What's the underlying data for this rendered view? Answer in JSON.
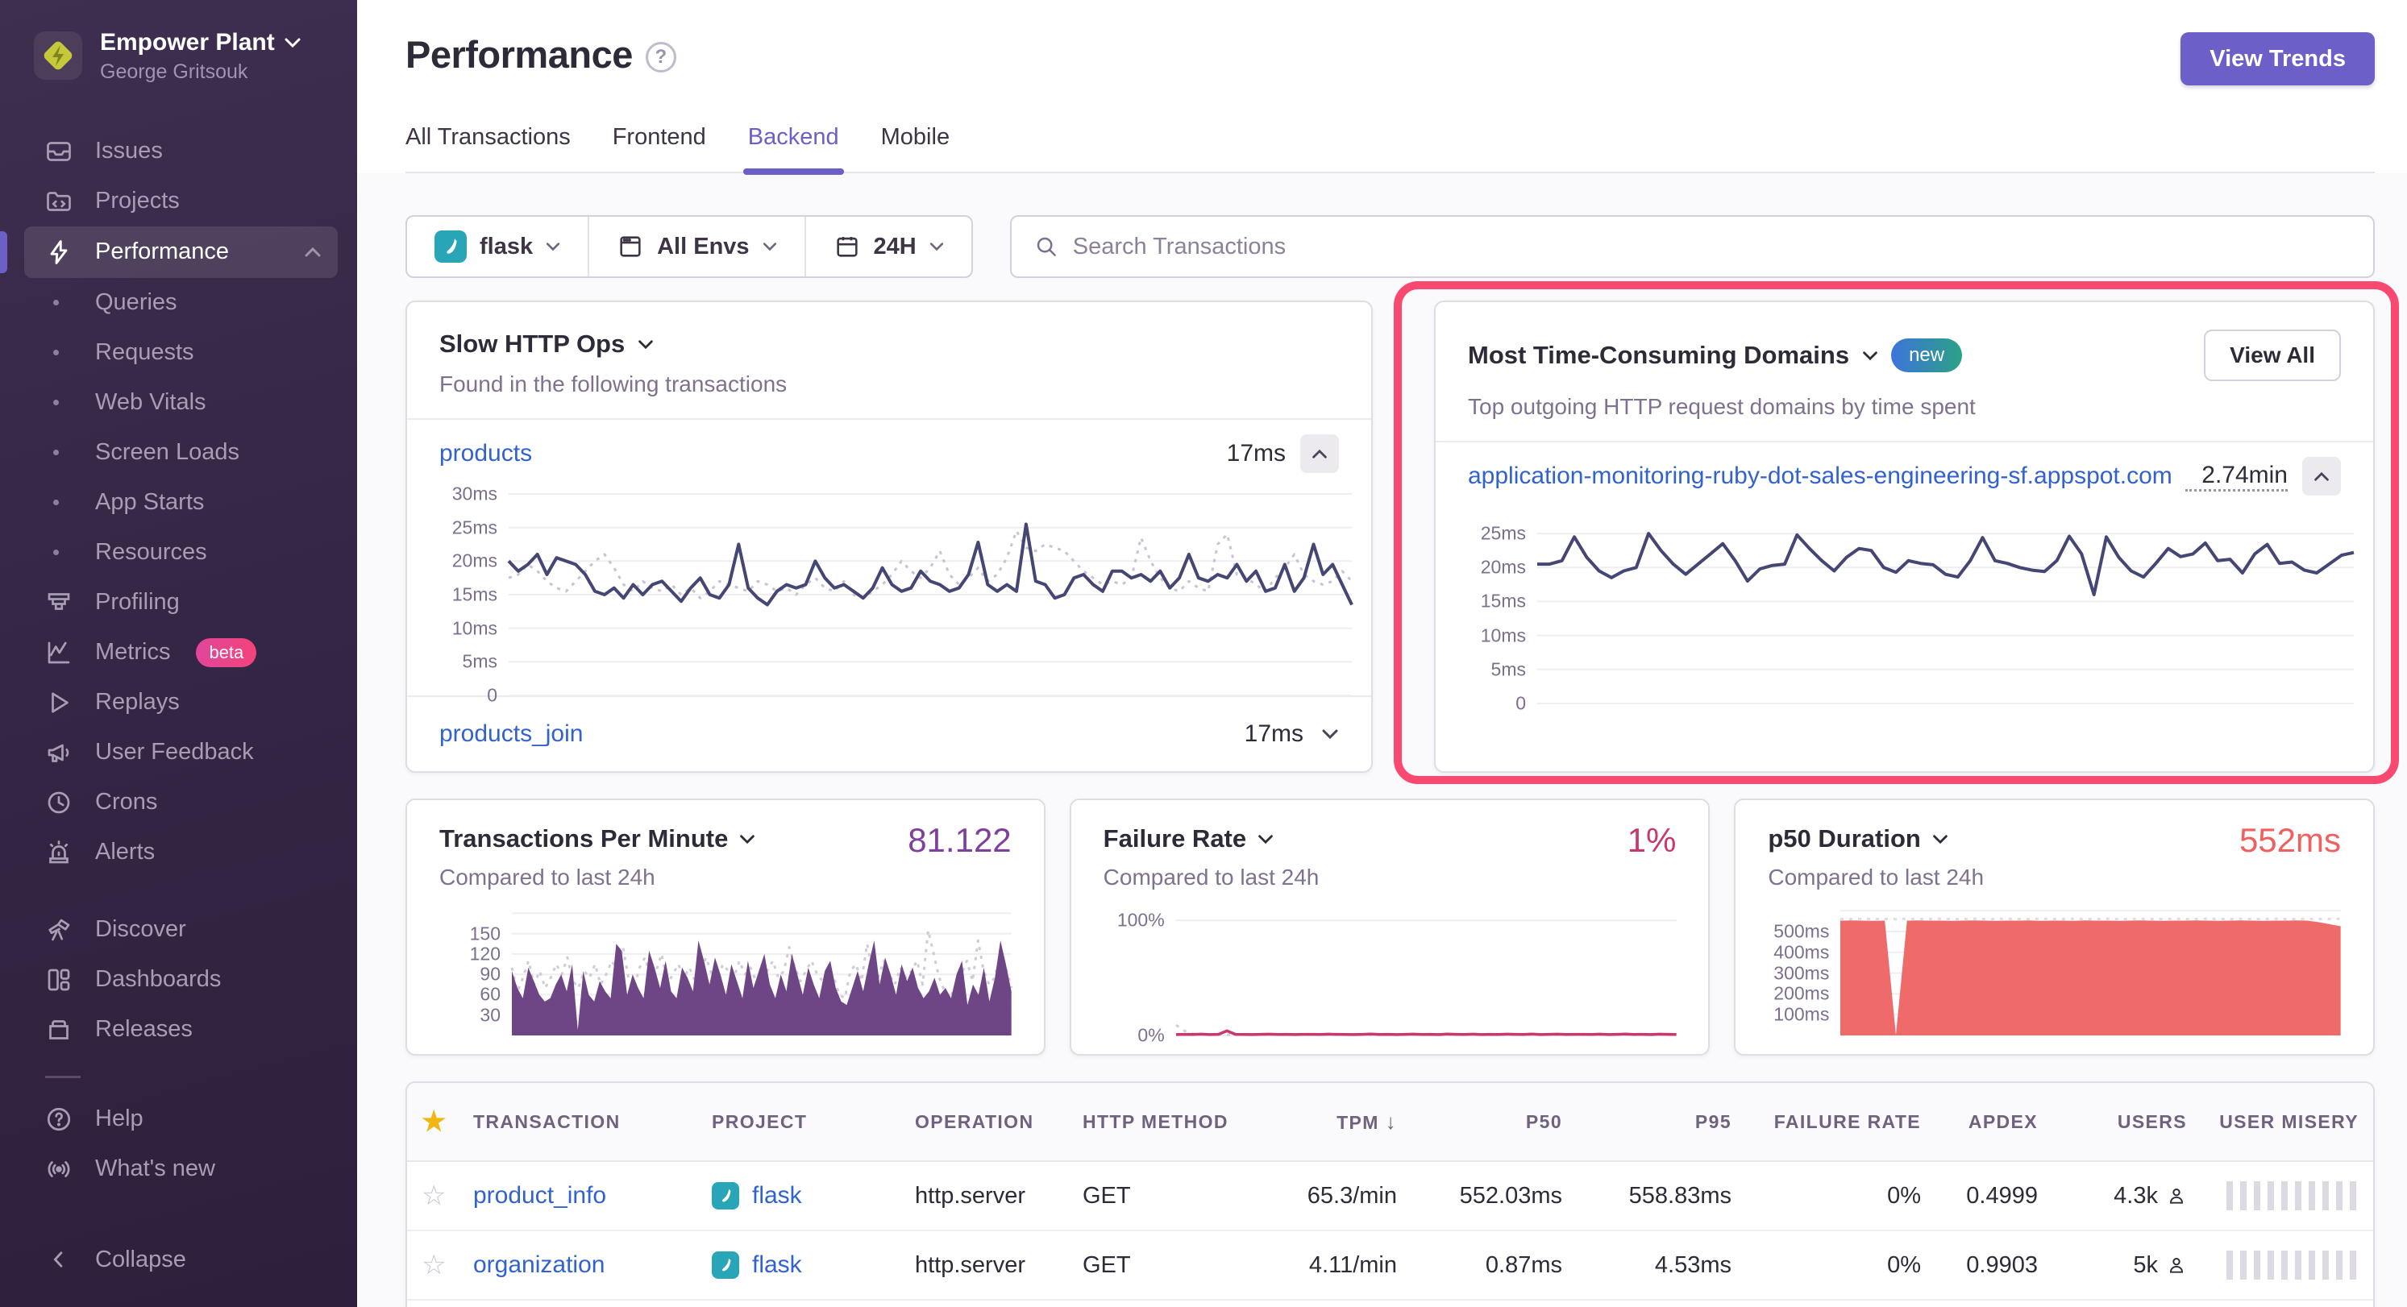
{
  "org": {
    "name": "Empower Plant",
    "user": "George Gritsouk"
  },
  "sidebar": {
    "items": [
      {
        "label": "Issues"
      },
      {
        "label": "Projects"
      },
      {
        "label": "Performance"
      },
      {
        "label": "Queries"
      },
      {
        "label": "Requests"
      },
      {
        "label": "Web Vitals"
      },
      {
        "label": "Screen Loads"
      },
      {
        "label": "App Starts"
      },
      {
        "label": "Resources"
      },
      {
        "label": "Profiling"
      },
      {
        "label": "Metrics",
        "badge": "beta"
      },
      {
        "label": "Replays"
      },
      {
        "label": "User Feedback"
      },
      {
        "label": "Crons"
      },
      {
        "label": "Alerts"
      },
      {
        "label": "Discover"
      },
      {
        "label": "Dashboards"
      },
      {
        "label": "Releases"
      },
      {
        "label": "Help"
      },
      {
        "label": "What's new"
      },
      {
        "label": "Collapse"
      }
    ]
  },
  "header": {
    "title": "Performance",
    "view_trends": "View Trends",
    "tabs": [
      {
        "label": "All Transactions"
      },
      {
        "label": "Frontend"
      },
      {
        "label": "Backend"
      },
      {
        "label": "Mobile"
      }
    ],
    "active_tab": "Backend"
  },
  "filters": {
    "project": "flask",
    "environment": "All Envs",
    "period": "24H",
    "search_placeholder": "Search Transactions"
  },
  "widgets": {
    "slow_http": {
      "title": "Slow HTTP Ops",
      "subtitle": "Found in the following transactions",
      "rows": [
        {
          "name": "products",
          "value": "17ms"
        },
        {
          "name": "products_join",
          "value": "17ms"
        }
      ]
    },
    "domains": {
      "title": "Most Time-Consuming Domains",
      "badge": "new",
      "view_all": "View All",
      "subtitle": "Top outgoing HTTP request domains by time spent",
      "row": {
        "name": "application-monitoring-ruby-dot-sales-engineering-sf.appspot.com",
        "value": "2.74min"
      }
    }
  },
  "summary": [
    {
      "title": "Transactions Per Minute",
      "value": "81.122",
      "subtitle": "Compared to last 24h",
      "value_color": "#7E3F9D"
    },
    {
      "title": "Failure Rate",
      "value": "1%",
      "subtitle": "Compared to last 24h",
      "value_color": "#C8386E"
    },
    {
      "title": "p50 Duration",
      "value": "552ms",
      "subtitle": "Compared to last 24h",
      "value_color": "#EF6160"
    }
  ],
  "table": {
    "columns": [
      "TRANSACTION",
      "PROJECT",
      "OPERATION",
      "HTTP METHOD",
      "TPM",
      "P50",
      "P95",
      "FAILURE RATE",
      "APDEX",
      "USERS",
      "USER MISERY"
    ],
    "sorted_by": "TPM",
    "rows": [
      {
        "transaction": "product_info",
        "project": "flask",
        "operation": "http.server",
        "method": "GET",
        "tpm": "65.3/min",
        "p50": "552.03ms",
        "p95": "558.83ms",
        "failure": "0%",
        "apdex": "0.4999",
        "users": "4.3k"
      },
      {
        "transaction": "organization",
        "project": "flask",
        "operation": "http.server",
        "method": "GET",
        "tpm": "4.11/min",
        "p50": "0.87ms",
        "p95": "4.53ms",
        "failure": "0%",
        "apdex": "0.9903",
        "users": "5k"
      }
    ]
  },
  "colors": {
    "accent_purple": "#6C5FC7",
    "link_blue": "#3162D0",
    "annotation_pink": "#F94971",
    "chart_navy": "#444674",
    "sidebar_bg": "#342544",
    "flask_teal": "#29A5B8",
    "star_gold": "#F0B712"
  },
  "charts": {
    "slow_http": {
      "type": "line",
      "unit": "ms",
      "ymax": 30,
      "yticks": [
        {
          "v": 30,
          "label": "30ms"
        },
        {
          "v": 25,
          "label": "25ms"
        },
        {
          "v": 20,
          "label": "20ms"
        },
        {
          "v": 15,
          "label": "15ms"
        },
        {
          "v": 10,
          "label": "10ms"
        },
        {
          "v": 5,
          "label": "5ms"
        },
        {
          "v": 0,
          "label": "0"
        }
      ],
      "series": [
        {
          "name": "previous",
          "dashed": true,
          "color": "#C9C3D3",
          "width": 3,
          "values": [
            17.5,
            18,
            19.5,
            18.5,
            17,
            16,
            15.5,
            17,
            18.5,
            20,
            21,
            19,
            16.5,
            15.5,
            17,
            16,
            15.5,
            16.5,
            15,
            16,
            14.5,
            15.5,
            17,
            16.5,
            16,
            15.5,
            17,
            16.5,
            15.5,
            16,
            15,
            16.5,
            17.5,
            16,
            15.5,
            17,
            15,
            14.5,
            15.5,
            16.5,
            18,
            20,
            18.5,
            17.5,
            19,
            21.5,
            18,
            16.5,
            17.5,
            19,
            17,
            18,
            20.5,
            24.5,
            22,
            21.5,
            22.5,
            22,
            21.5,
            20,
            18.5,
            17.5,
            16.5,
            17,
            16.5,
            17.5,
            23.5,
            20,
            17.5,
            16,
            15.5,
            17,
            16,
            15.5,
            22.5,
            24,
            18,
            17.5,
            16.5,
            15.5,
            17.5,
            19,
            21,
            18,
            17,
            16.5,
            17,
            18.5,
            17
          ]
        },
        {
          "name": "current",
          "dashed": false,
          "color": "#444674",
          "width": 4,
          "values": [
            20,
            18.5,
            19.5,
            21,
            18,
            20.5,
            20,
            19.5,
            18,
            15.5,
            15,
            16,
            14.5,
            16.5,
            15,
            16.5,
            17,
            15.5,
            14,
            16,
            17.5,
            15,
            14.5,
            16.5,
            22.5,
            16,
            14.5,
            13.5,
            15.5,
            16.5,
            16,
            16.5,
            20,
            17.5,
            16,
            16.5,
            15.5,
            14.5,
            16,
            19,
            16.5,
            15.5,
            16,
            18.5,
            17,
            16.5,
            15.5,
            16,
            18,
            22.8,
            16.5,
            15.5,
            16.5,
            15.5,
            25.5,
            17,
            16.5,
            14.5,
            15,
            17.5,
            18,
            16.5,
            15.5,
            18.5,
            18.5,
            17.5,
            18,
            17,
            18.5,
            16,
            17.5,
            21,
            17.5,
            17,
            18,
            17.5,
            19.5,
            17,
            18.5,
            15.5,
            16,
            19.5,
            15.5,
            17.5,
            22.5,
            18,
            19.5,
            16.5,
            13.5
          ]
        }
      ]
    },
    "domains": {
      "type": "line",
      "unit": "ms",
      "ymax": 27.5,
      "yticks": [
        {
          "v": 25,
          "label": "25ms"
        },
        {
          "v": 20,
          "label": "20ms"
        },
        {
          "v": 15,
          "label": "15ms"
        },
        {
          "v": 10,
          "label": "10ms"
        },
        {
          "v": 5,
          "label": "5ms"
        },
        {
          "v": 0,
          "label": "0"
        }
      ],
      "series": [
        {
          "name": "current",
          "dashed": false,
          "color": "#444674",
          "width": 4,
          "values": [
            20.5,
            20.5,
            21,
            24.5,
            21.5,
            19.5,
            18.5,
            19.5,
            20,
            25,
            22.5,
            20.5,
            19,
            20.5,
            22,
            23.5,
            21,
            18,
            19.8,
            20.3,
            20.5,
            24.8,
            22.8,
            21,
            19.5,
            21.5,
            22.8,
            22.5,
            20,
            19.3,
            21,
            20.6,
            20.4,
            19,
            18.6,
            21,
            24.4,
            21,
            20.6,
            20,
            19.6,
            19.4,
            21,
            24.6,
            22,
            16,
            24.5,
            21.5,
            19.5,
            18.6,
            20.6,
            22.8,
            21.6,
            22,
            23.6,
            21,
            21.2,
            19.2,
            22,
            23.4,
            20.6,
            20.8,
            19.6,
            19.2,
            20.5,
            21.8,
            22.2
          ]
        }
      ]
    },
    "tpm": {
      "type": "area",
      "ymax": 190,
      "yticks": [
        {
          "v": 180,
          "label": ""
        },
        {
          "v": 150,
          "label": "150"
        },
        {
          "v": 120,
          "label": "120"
        },
        {
          "v": 90,
          "label": "90"
        },
        {
          "v": 60,
          "label": "60"
        },
        {
          "v": 30,
          "label": "30"
        }
      ],
      "series": [
        {
          "name": "previous",
          "dashed": true,
          "color": "#CFCBD8",
          "width": 3,
          "values": [
            100,
            65,
            85,
            110,
            75,
            95,
            70,
            85,
            105,
            90,
            115,
            80,
            70,
            95,
            85,
            105,
            75,
            90,
            110,
            95,
            130,
            85,
            70,
            100,
            115,
            85,
            95,
            120,
            75,
            90,
            105,
            85,
            100,
            80,
            95,
            115,
            90,
            80,
            105,
            95,
            85,
            110,
            90,
            100,
            80,
            75,
            95,
            110,
            85,
            95,
            130,
            100,
            80,
            95,
            110,
            90,
            80,
            70,
            85,
            60,
            55,
            95,
            105,
            80,
            135,
            95,
            85,
            110,
            90,
            75,
            100,
            85,
            95,
            110,
            75,
            155,
            120,
            85,
            65,
            55,
            75,
            90,
            110,
            80,
            140,
            95,
            75,
            85,
            120,
            100,
            70
          ]
        },
        {
          "name": "current",
          "area": true,
          "color": "#6F4685",
          "width": 3,
          "values": [
            95,
            70,
            55,
            100,
            80,
            60,
            50,
            55,
            75,
            90,
            65,
            105,
            8,
            95,
            60,
            50,
            80,
            65,
            55,
            135,
            125,
            60,
            90,
            70,
            55,
            125,
            100,
            70,
            110,
            65,
            55,
            100,
            85,
            65,
            140,
            110,
            75,
            115,
            90,
            60,
            105,
            80,
            55,
            110,
            70,
            95,
            120,
            75,
            55,
            90,
            65,
            120,
            90,
            60,
            100,
            75,
            55,
            95,
            110,
            70,
            50,
            45,
            70,
            95,
            65,
            105,
            140,
            75,
            115,
            90,
            60,
            105,
            80,
            100,
            70,
            55,
            65,
            85,
            60,
            70,
            55,
            90,
            110,
            45,
            75,
            60,
            100,
            50,
            85,
            140,
            105,
            65
          ]
        }
      ]
    },
    "failure": {
      "type": "line",
      "ymax": 112,
      "yticks": [
        {
          "v": 100,
          "label": "100%"
        },
        {
          "v": 0,
          "label": "0%"
        }
      ],
      "series": [
        {
          "name": "previous",
          "dashed": true,
          "color": "#D2CEDA",
          "width": 3,
          "values": [
            9,
            4,
            1.5,
            1,
            0.8,
            0.7,
            0.6,
            0.7,
            0.6,
            0.7,
            0.6,
            0.6,
            0.7,
            0.6,
            0.7,
            0.6,
            0.6,
            0.7,
            0.6,
            0.6,
            0.7,
            0.6,
            0.7,
            0.6,
            0.6,
            0.7,
            0.6,
            0.6,
            0.7,
            0.6,
            0.7,
            0.6,
            0.6,
            0.7,
            0.6,
            0.6,
            0.7,
            0.6,
            0.7,
            0.6,
            0.6,
            0.7,
            0.6,
            0.6,
            0.7,
            0.6,
            0.7,
            0.6,
            0.6,
            0.7,
            0.6,
            0.6,
            0.7,
            0.6,
            0.7,
            0.6,
            0.6,
            0.7,
            0.6,
            0.6
          ]
        },
        {
          "name": "current",
          "dashed": false,
          "color": "#C8386E",
          "width": 3.5,
          "values": [
            0.8,
            1,
            0.9,
            1.1,
            0.8,
            1,
            4,
            1,
            0.9,
            0.8,
            1,
            1.1,
            0.9,
            1,
            0.8,
            1,
            1,
            0.9,
            1.1,
            1,
            0.9,
            0.8,
            1,
            1.2,
            0.9,
            1,
            0.8,
            1,
            1.1,
            0.9,
            1,
            0.8,
            1.2,
            1,
            0.9,
            1.1,
            0.8,
            1,
            0.9,
            1.1,
            1,
            0.9,
            1.2,
            0.8,
            1,
            1.1,
            0.9,
            1,
            1,
            0.9,
            1.1,
            0.8,
            1,
            1.2,
            0.9,
            1,
            0.8,
            1.1,
            1,
            0.9
          ]
        }
      ]
    },
    "p50": {
      "type": "area",
      "unit": "ms",
      "ymax": 620,
      "yticks": [
        {
          "v": 600,
          "label": ""
        },
        {
          "v": 500,
          "label": "500ms"
        },
        {
          "v": 400,
          "label": "400ms"
        },
        {
          "v": 300,
          "label": "300ms"
        },
        {
          "v": 200,
          "label": "200ms"
        },
        {
          "v": 100,
          "label": "100ms"
        }
      ],
      "series": [
        {
          "name": "previous",
          "dashed": true,
          "color": "#DFDBE4",
          "width": 3,
          "values": [
            560,
            560,
            561,
            560,
            560,
            560,
            561,
            560,
            560,
            561,
            560,
            560,
            561,
            560,
            560,
            561,
            560,
            560,
            561,
            560,
            560,
            561,
            560,
            560,
            561,
            560,
            560,
            561,
            560,
            560,
            561,
            560,
            560,
            561,
            560,
            560,
            561,
            560,
            560,
            561,
            560,
            560,
            561,
            560,
            560,
            561
          ]
        },
        {
          "name": "current",
          "area": true,
          "color": "#EE6B6A",
          "width": 3,
          "values": [
            552,
            553,
            552,
            551,
            552,
            2,
            552,
            553,
            552,
            552,
            551,
            552,
            553,
            552,
            551,
            552,
            552,
            553,
            551,
            552,
            552,
            551,
            553,
            552,
            552,
            551,
            552,
            553,
            552,
            551,
            552,
            552,
            553,
            552,
            551,
            552,
            553,
            552,
            551,
            552,
            552,
            553,
            552,
            545,
            535,
            525
          ]
        }
      ]
    }
  }
}
